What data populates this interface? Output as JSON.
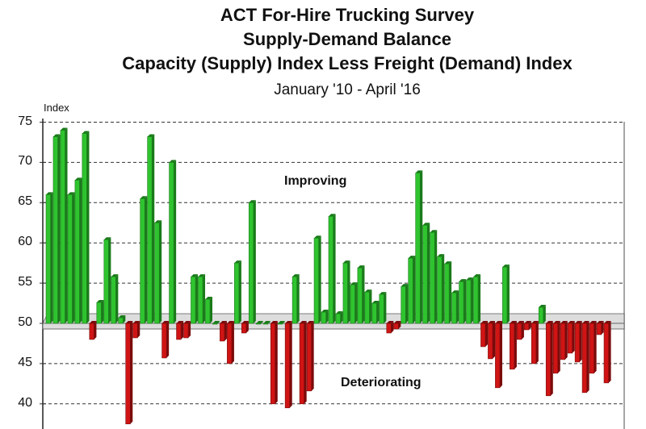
{
  "header": {
    "title_line1": "ACT For-Hire Trucking Survey",
    "title_line2": "Supply-Demand Balance",
    "title_line3": "Capacity (Supply) Index Less Freight (Demand) Index",
    "subtitle": "January '10 - April '16"
  },
  "axis": {
    "ylabel": "Index",
    "ticks": [
      "75",
      "70",
      "65",
      "60",
      "55",
      "50",
      "45",
      "40"
    ]
  },
  "annotations": {
    "improving": "Improving",
    "deteriorating": "Deteriorating"
  },
  "colors": {
    "positive": "#2fc42f",
    "positive_dark": "#1a7a1a",
    "negative": "#d01414",
    "negative_dark": "#7a0a0a",
    "baseline_band": "#dddddd"
  },
  "chart_data": {
    "type": "bar",
    "title": "ACT For-Hire Trucking Survey — Supply-Demand Balance: Capacity (Supply) Index Less Freight (Demand) Index",
    "subtitle": "January '10 - April '16",
    "xlabel": "",
    "ylabel": "Index",
    "ylim": [
      38,
      75
    ],
    "baseline": 50,
    "grid": true,
    "yticks": [
      40,
      45,
      50,
      55,
      60,
      65,
      70,
      75
    ],
    "annotations": [
      "Improving",
      "Deteriorating"
    ],
    "values": [
      66,
      73.2,
      74,
      66,
      67.8,
      73.6,
      48,
      52.6,
      60.4,
      55.8,
      50.7,
      37.5,
      48.2,
      65.5,
      73.2,
      62.5,
      45.7,
      70,
      48,
      48.2,
      55.8,
      55.8,
      53,
      50,
      47.8,
      45,
      57.5,
      48.8,
      65,
      50,
      50,
      40,
      50,
      39.5,
      55.8,
      40,
      41.6,
      60.6,
      51.4,
      63.3,
      51.2,
      57.5,
      54.8,
      56.9,
      53.9,
      52.5,
      53.6,
      48.8,
      49.3,
      54.6,
      58.1,
      68.7,
      62.2,
      61.3,
      58.3,
      57.4,
      53.8,
      55.2,
      55.4,
      55.8,
      47.1,
      45.6,
      42,
      57,
      44.3,
      48,
      49.2,
      45,
      52,
      41,
      43.8,
      45.5,
      46.3,
      45.2,
      41.4,
      43.8,
      48.6,
      42.6
    ]
  }
}
